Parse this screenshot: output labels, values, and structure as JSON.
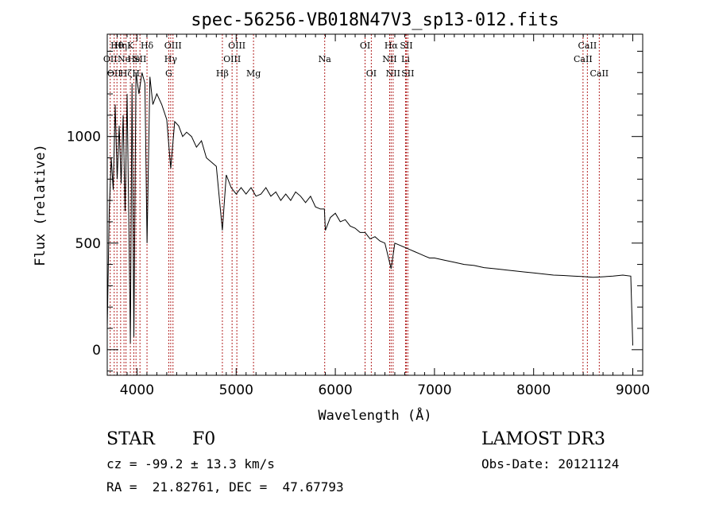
{
  "chart_data": {
    "type": "line",
    "title": "spec-56256-VB018N47V3_sp13-012.fits",
    "xlabel": "Wavelength (Å)",
    "ylabel": "Flux (relative)",
    "xlim": [
      3700,
      9100
    ],
    "ylim": [
      -120,
      1480
    ],
    "xticks": [
      {
        "value": 4000,
        "label": "4000"
      },
      {
        "value": 5000,
        "label": "5000"
      },
      {
        "value": 6000,
        "label": "6000"
      },
      {
        "value": 7000,
        "label": "7000"
      },
      {
        "value": 8000,
        "label": "8000"
      },
      {
        "value": 9000,
        "label": "9000"
      }
    ],
    "yticks": [
      {
        "value": 0,
        "label": "0"
      },
      {
        "value": 500,
        "label": "500"
      },
      {
        "value": 1000,
        "label": "1000"
      }
    ],
    "series": [
      {
        "name": "spectrum",
        "x": [
          3700,
          3720,
          3740,
          3760,
          3780,
          3800,
          3820,
          3840,
          3860,
          3880,
          3900,
          3920,
          3933,
          3950,
          3968,
          3990,
          4020,
          4050,
          4080,
          4101,
          4130,
          4160,
          4200,
          4250,
          4300,
          4340,
          4380,
          4420,
          4460,
          4500,
          4550,
          4600,
          4650,
          4700,
          4750,
          4800,
          4861,
          4900,
          4950,
          5000,
          5050,
          5100,
          5150,
          5200,
          5250,
          5300,
          5350,
          5400,
          5450,
          5500,
          5550,
          5600,
          5650,
          5700,
          5750,
          5800,
          5850,
          5890,
          5900,
          5950,
          6000,
          6050,
          6100,
          6150,
          6200,
          6250,
          6300,
          6350,
          6400,
          6450,
          6500,
          6563,
          6600,
          6650,
          6700,
          6750,
          6800,
          6850,
          6900,
          6950,
          7000,
          7100,
          7200,
          7300,
          7400,
          7500,
          7600,
          7700,
          7800,
          7900,
          8000,
          8100,
          8200,
          8300,
          8400,
          8500,
          8600,
          8700,
          8800,
          8900,
          8980,
          9000
        ],
        "y": [
          100,
          650,
          900,
          750,
          1150,
          800,
          1050,
          780,
          1100,
          650,
          1200,
          500,
          30,
          1250,
          60,
          1300,
          1200,
          1300,
          1250,
          500,
          1280,
          1150,
          1200,
          1150,
          1080,
          850,
          1070,
          1050,
          1000,
          1020,
          1000,
          950,
          980,
          900,
          880,
          860,
          560,
          820,
          760,
          730,
          760,
          730,
          760,
          720,
          730,
          760,
          720,
          740,
          700,
          730,
          700,
          740,
          720,
          690,
          720,
          670,
          660,
          660,
          560,
          620,
          640,
          600,
          610,
          580,
          570,
          550,
          550,
          520,
          530,
          510,
          500,
          380,
          500,
          490,
          480,
          470,
          460,
          450,
          440,
          430,
          430,
          420,
          410,
          400,
          395,
          385,
          380,
          375,
          370,
          365,
          360,
          355,
          350,
          348,
          345,
          343,
          340,
          342,
          345,
          350,
          345,
          20
        ]
      }
    ],
    "line_labels": [
      {
        "wave": 3730,
        "row": 2,
        "text": "OII"
      },
      {
        "wave": 3770,
        "row": 3,
        "text": "OII"
      },
      {
        "wave": 3798,
        "row": 1,
        "text": "Hθ"
      },
      {
        "wave": 3835,
        "row": 1,
        "text": "Hη"
      },
      {
        "wave": 3869,
        "row": 2,
        "text": "Ne"
      },
      {
        "wave": 3889,
        "row": 3,
        "text": "Hζ"
      },
      {
        "wave": 3933,
        "row": 1,
        "text": "K"
      },
      {
        "wave": 3968,
        "row": 2,
        "text": "He"
      },
      {
        "wave": 3990,
        "row": 3,
        "text": "H"
      },
      {
        "wave": 4030,
        "row": 2,
        "text": "SII"
      },
      {
        "wave": 4101,
        "row": 1,
        "text": "Hδ"
      },
      {
        "wave": 4320,
        "row": 3,
        "text": "G"
      },
      {
        "wave": 4340,
        "row": 2,
        "text": "Hγ"
      },
      {
        "wave": 4363,
        "row": 1,
        "text": "OIII"
      },
      {
        "wave": 4861,
        "row": 3,
        "text": "Hβ"
      },
      {
        "wave": 4959,
        "row": 2,
        "text": "OIII"
      },
      {
        "wave": 5007,
        "row": 1,
        "text": "OIII"
      },
      {
        "wave": 5175,
        "row": 3,
        "text": "Mg"
      },
      {
        "wave": 5893,
        "row": 2,
        "text": "Na"
      },
      {
        "wave": 6300,
        "row": 1,
        "text": "OI"
      },
      {
        "wave": 6363,
        "row": 3,
        "text": "OI"
      },
      {
        "wave": 6548,
        "row": 2,
        "text": "NII"
      },
      {
        "wave": 6563,
        "row": 1,
        "text": "Hα"
      },
      {
        "wave": 6583,
        "row": 3,
        "text": "NII"
      },
      {
        "wave": 6708,
        "row": 2,
        "text": "Li"
      },
      {
        "wave": 6716,
        "row": 1,
        "text": "SII"
      },
      {
        "wave": 6731,
        "row": 3,
        "text": "SII"
      },
      {
        "wave": 8498,
        "row": 2,
        "text": "CaII"
      },
      {
        "wave": 8542,
        "row": 1,
        "text": "CaII"
      },
      {
        "wave": 8662,
        "row": 3,
        "text": "CaII"
      }
    ],
    "line_color": "#b22222"
  },
  "info": {
    "object_class": "STAR",
    "subclass": "F0",
    "survey": "LAMOST DR3",
    "velocity": "cz = -99.2 ± 13.3 km/s",
    "obs_date": "Obs-Date: 20121124",
    "coords": "RA =  21.82761, DEC =  47.67793"
  }
}
